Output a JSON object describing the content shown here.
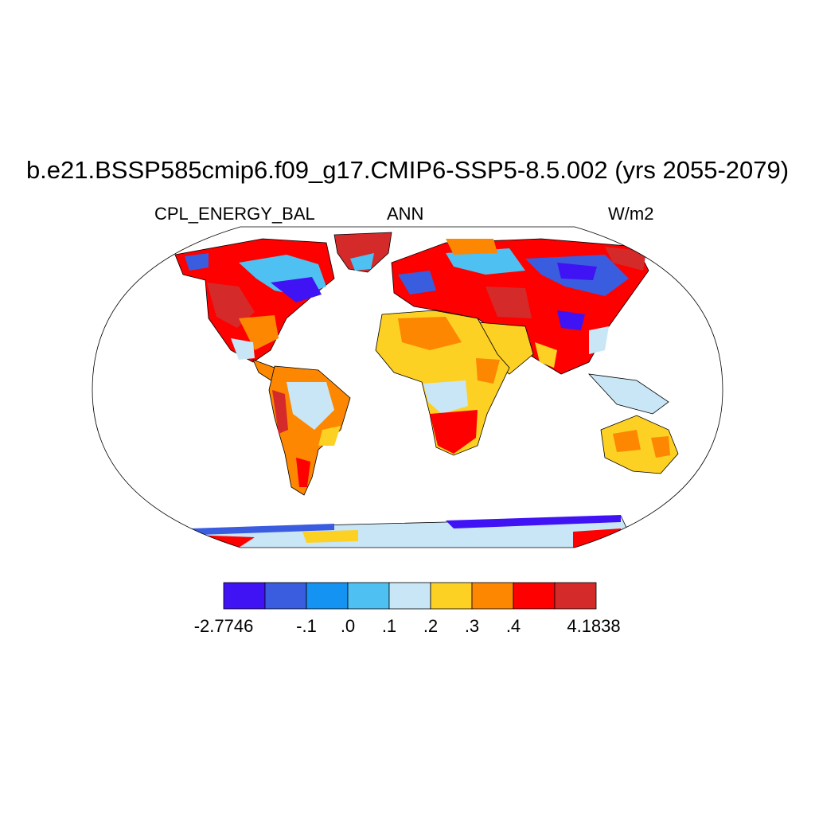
{
  "title": "b.e21.BSSP585cmip6.f09_g17.CMIP6-SSP5-8.5.002 (yrs 2055-2079)",
  "subtitle": {
    "variable": "CPL_ENERGY_BAL",
    "season": "ANN",
    "units": "W/m2"
  },
  "colorbar": {
    "colors": [
      "#3f13f4",
      "#3a5de0",
      "#1593f2",
      "#4ec1f2",
      "#c9e6f7",
      "#fdd024",
      "#fd8700",
      "#fe0000",
      "#d52a2a"
    ],
    "labels": [
      "-2.7746",
      "-.1",
      ".0",
      ".1",
      ".2",
      ".3",
      ".4",
      "4.1838"
    ]
  },
  "map": {
    "projection": "Robinson",
    "domain": "global"
  }
}
